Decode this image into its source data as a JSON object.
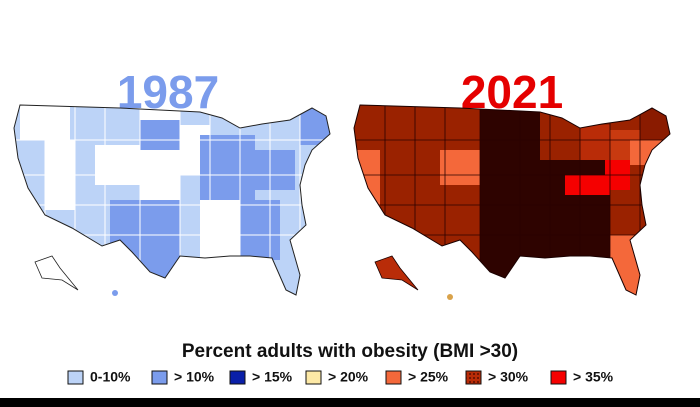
{
  "maps": [
    {
      "title": "1987",
      "title_color": "#7b9cec"
    },
    {
      "title": "2021",
      "title_color": "#e50000"
    }
  ],
  "legend": {
    "title": "Percent adults with obesity (BMI >30)",
    "items": [
      {
        "label": "0-10%",
        "color": "#bcd3f7"
      },
      {
        "label": "> 10%",
        "color": "#7b9cec"
      },
      {
        "label": "> 15%",
        "color": "#0a1fa8"
      },
      {
        "label": "> 20%",
        "color": "#fde9a6"
      },
      {
        "label": "> 25%",
        "color": "#f4683a"
      },
      {
        "label": "> 30%",
        "color": "#b92c08"
      },
      {
        "label": "> 35%",
        "color": "#f50000"
      }
    ]
  }
}
